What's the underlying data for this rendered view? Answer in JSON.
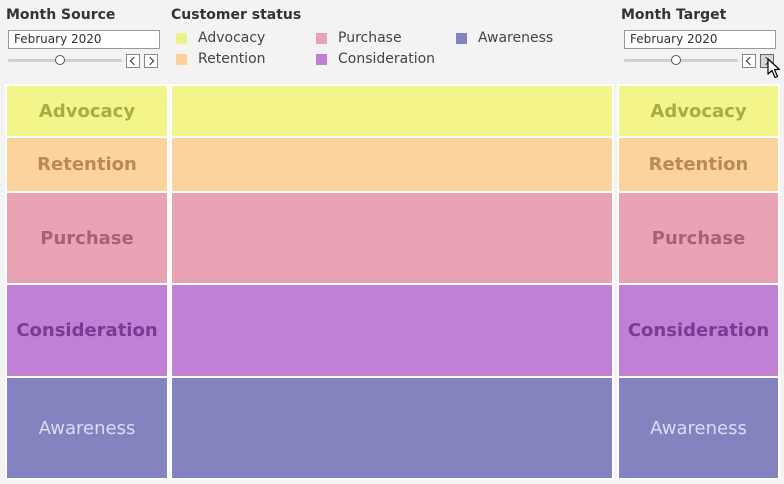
{
  "source": {
    "title": "Month Source",
    "month_value": "February 2020"
  },
  "legend": {
    "title": "Customer status",
    "items": [
      {
        "label": "Advocacy",
        "color": "#eef18a"
      },
      {
        "label": "Retention",
        "color": "#fcd09a"
      },
      {
        "label": "Purchase",
        "color": "#e8a4b5"
      },
      {
        "label": "Consideration",
        "color": "#c07fd3"
      },
      {
        "label": "Awareness",
        "color": "#8383c0"
      }
    ]
  },
  "target": {
    "title": "Month Target",
    "month_value": "February 2020"
  },
  "stages": [
    {
      "label": "Advocacy",
      "color": "#f3f58b",
      "text_color": "#a8ac45"
    },
    {
      "label": "Retention",
      "color": "#fdd39d",
      "text_color": "#b9895a"
    },
    {
      "label": "Purchase",
      "color": "#e8a4b5",
      "text_color": "#a9607a"
    },
    {
      "label": "Consideration",
      "color": "#c080d3",
      "text_color": "#7a3a95"
    },
    {
      "label": "Awareness",
      "color": "#8383c0",
      "text_color": "#dedcf3"
    }
  ]
}
